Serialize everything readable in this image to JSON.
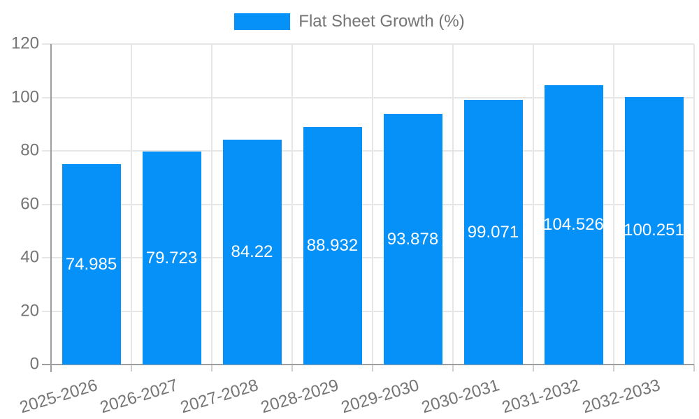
{
  "chart_data": {
    "type": "bar",
    "title": "Flat Sheet Growth (%)",
    "series_name": "Flat Sheet Growth (%)",
    "categories": [
      "2025-2026",
      "2026-2027",
      "2027-2028",
      "2028-2029",
      "2029-2030",
      "2030-2031",
      "2031-2032",
      "2032-2033"
    ],
    "values": [
      74.985,
      79.723,
      84.22,
      88.932,
      93.878,
      99.071,
      104.526,
      100.251
    ],
    "value_labels": [
      "74.985",
      "79.723",
      "84.22",
      "88.932",
      "93.878",
      "99.071",
      "104.526",
      "100.251"
    ],
    "xlabel": "",
    "ylabel": "",
    "ylim": [
      0,
      120
    ],
    "y_ticks": [
      0,
      20,
      40,
      60,
      80,
      100,
      120
    ],
    "grid_on": true,
    "legend_position": "top",
    "x_label_rotation_deg": -17,
    "colors": {
      "bar": "#0591f8",
      "bar_label": "#ffffff",
      "axis_text": "#757575",
      "axis_line": "#9e9e9e",
      "gridline": "#e6e6e6",
      "tick": "#cfcfcf",
      "background": "#ffffff"
    }
  }
}
